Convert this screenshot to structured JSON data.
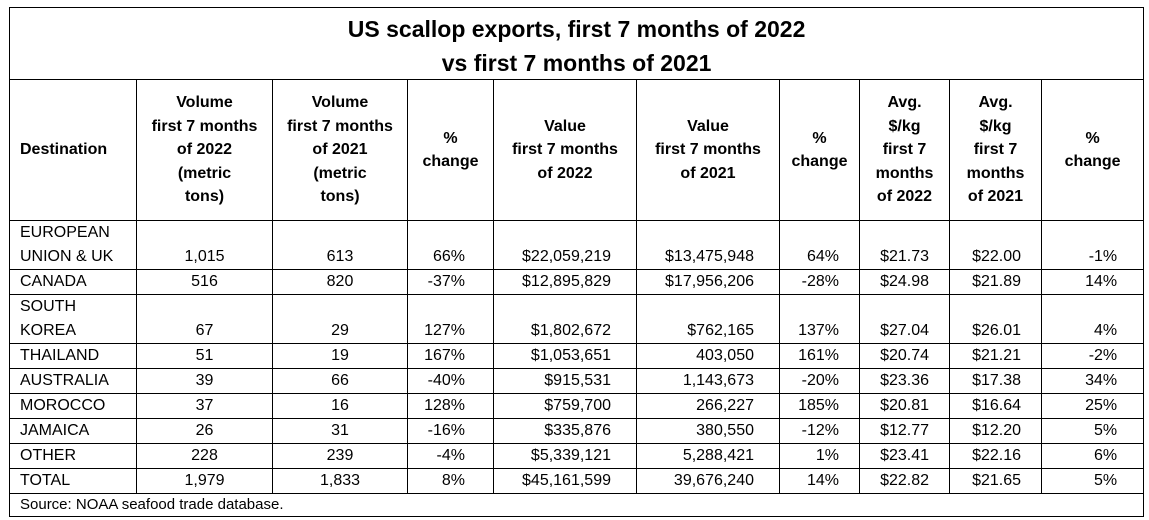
{
  "title_line1": "US scallop exports, first 7 months of 2022",
  "title_line2": "vs first 7 months of 2021",
  "headers": {
    "destination": "Destination",
    "vol2022": "Volume\nfirst 7 months\nof 2022\n(metric\ntons)",
    "vol2021": "Volume\nfirst 7 months\nof 2021\n(metric\ntons)",
    "vol_change": "%\nchange",
    "val2022": "Value\nfirst 7 months\nof 2022",
    "val2021": "Value\nfirst 7 months\nof 2021",
    "val_change": "%\nchange",
    "avg2022": "Avg.\n$/kg\nfirst 7\nmonths\nof 2022",
    "avg2021": "Avg.\n$/kg\nfirst 7\nmonths\nof 2021",
    "avg_change": "%\nchange"
  },
  "rows": [
    {
      "dest_top": "EUROPEAN",
      "dest": "UNION & UK",
      "vol2022": "1,015",
      "vol2021": "613",
      "vol_change": "66%",
      "val2022": "$22,059,219",
      "val2021": "$13,475,948",
      "val_change": "64%",
      "avg2022": "$21.73",
      "avg2021": "$22.00",
      "avg_change": "-1%"
    },
    {
      "dest": "CANADA",
      "vol2022": "516",
      "vol2021": "820",
      "vol_change": "-37%",
      "val2022": "$12,895,829",
      "val2021": "$17,956,206",
      "val_change": "-28%",
      "avg2022": "$24.98",
      "avg2021": "$21.89",
      "avg_change": "14%"
    },
    {
      "dest_top": "SOUTH",
      "dest": "KOREA",
      "vol2022": "67",
      "vol2021": "29",
      "vol_change": "127%",
      "val2022": "$1,802,672",
      "val2021": "$762,165",
      "val_change": "137%",
      "avg2022": "$27.04",
      "avg2021": "$26.01",
      "avg_change": "4%"
    },
    {
      "dest": "THAILAND",
      "vol2022": "51",
      "vol2021": "19",
      "vol_change": "167%",
      "val2022": "$1,053,651",
      "val2021": "403,050",
      "val_change": "161%",
      "avg2022": "$20.74",
      "avg2021": "$21.21",
      "avg_change": "-2%"
    },
    {
      "dest": "AUSTRALIA",
      "vol2022": "39",
      "vol2021": "66",
      "vol_change": "-40%",
      "val2022": "$915,531",
      "val2021": "1,143,673",
      "val_change": "-20%",
      "avg2022": "$23.36",
      "avg2021": "$17.38",
      "avg_change": "34%"
    },
    {
      "dest": "MOROCCO",
      "vol2022": "37",
      "vol2021": "16",
      "vol_change": "128%",
      "val2022": "$759,700",
      "val2021": "266,227",
      "val_change": "185%",
      "avg2022": "$20.81",
      "avg2021": "$16.64",
      "avg_change": "25%"
    },
    {
      "dest": "JAMAICA",
      "vol2022": "26",
      "vol2021": "31",
      "vol_change": "-16%",
      "val2022": "$335,876",
      "val2021": "380,550",
      "val_change": "-12%",
      "avg2022": "$12.77",
      "avg2021": "$12.20",
      "avg_change": "5%"
    },
    {
      "dest": "OTHER",
      "vol2022": "228",
      "vol2021": "239",
      "vol_change": "-4%",
      "val2022": "$5,339,121",
      "val2021": "5,288,421",
      "val_change": "1%",
      "avg2022": "$23.41",
      "avg2021": "$22.16",
      "avg_change": "6%"
    },
    {
      "dest": "TOTAL",
      "vol2022": "1,979",
      "vol2021": "1,833",
      "vol_change": "8%",
      "val2022": "$45,161,599",
      "val2021": "39,676,240",
      "val_change": "14%",
      "avg2022": "$22.82",
      "avg2021": "$21.65",
      "avg_change": "5%"
    }
  ],
  "source": "Source: NOAA seafood trade database."
}
